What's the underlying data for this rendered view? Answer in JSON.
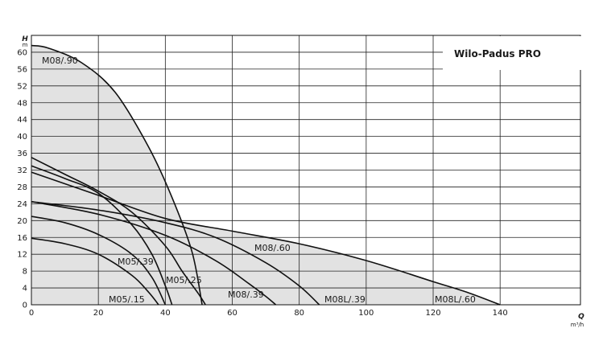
{
  "chart_data": {
    "type": "line",
    "title": "Wilo-Padus PRO",
    "xlabel": "Q",
    "xunit": "m³/h",
    "ylabel": "H",
    "yunit": "m",
    "xlim": [
      0,
      164
    ],
    "ylim": [
      0,
      64
    ],
    "x_ticks": [
      0,
      20,
      40,
      60,
      80,
      100,
      120,
      140
    ],
    "y_ticks": [
      0,
      4,
      8,
      12,
      16,
      20,
      24,
      28,
      32,
      36,
      40,
      44,
      48,
      52,
      56,
      60
    ],
    "grid": true,
    "fill_color": "#e2e2e2",
    "line_color": "#111111",
    "series": [
      {
        "name": "M05/.15",
        "x": [
          0,
          10,
          20,
          30,
          35,
          38
        ],
        "y": [
          15.8,
          14.5,
          12,
          7,
          3,
          0
        ]
      },
      {
        "name": "M05/.25",
        "x": [
          0,
          10,
          20,
          30,
          36,
          40
        ],
        "y": [
          21,
          19.5,
          16.7,
          12,
          6.5,
          0
        ]
      },
      {
        "name": "M05/.39",
        "x": [
          0,
          10,
          20,
          30,
          36,
          40,
          42
        ],
        "y": [
          33,
          30,
          26.5,
          19,
          12,
          4.5,
          0
        ]
      },
      {
        "name": "M08/.39",
        "x": [
          0,
          20,
          40,
          55,
          65,
          70,
          73
        ],
        "y": [
          24.5,
          21.5,
          16.5,
          10.5,
          5,
          2,
          0
        ]
      },
      {
        "name": "M08/.60",
        "x": [
          0,
          10,
          20,
          30,
          40,
          45,
          50,
          52
        ],
        "y": [
          35,
          31,
          27,
          22,
          14,
          8,
          2.5,
          0
        ]
      },
      {
        "name": "M08/.90",
        "x": [
          0,
          5,
          15,
          25,
          35,
          42,
          48,
          51
        ],
        "y": [
          61.6,
          61,
          57.5,
          50.5,
          37.5,
          25.5,
          12.5,
          0
        ]
      },
      {
        "name": "M08L/.39",
        "x": [
          0,
          20,
          40,
          55,
          70,
          80,
          86
        ],
        "y": [
          24.5,
          22.5,
          19.5,
          16,
          10,
          4.5,
          0
        ]
      },
      {
        "name": "M08L/.60",
        "x": [
          0,
          20,
          40,
          60,
          80,
          100,
          120,
          130,
          140
        ],
        "y": [
          31.5,
          26,
          20.5,
          17.5,
          14.5,
          10.5,
          5.5,
          3,
          0
        ]
      }
    ],
    "labels": [
      {
        "text": "M08/.90",
        "series": "M08/.90"
      },
      {
        "text": "M08/.60",
        "series": "M08/.60"
      },
      {
        "text": "M05/.39",
        "series": "M05/.39"
      },
      {
        "text": "M05/.25",
        "series": "M05/.25"
      },
      {
        "text": "M08/.39",
        "series": "M08/.39"
      },
      {
        "text": "M05/.15",
        "series": "M05/.15"
      },
      {
        "text": "M08L/.39",
        "series": "M08L/.39"
      },
      {
        "text": "M08L/.60",
        "series": "M08L/.60"
      }
    ]
  }
}
